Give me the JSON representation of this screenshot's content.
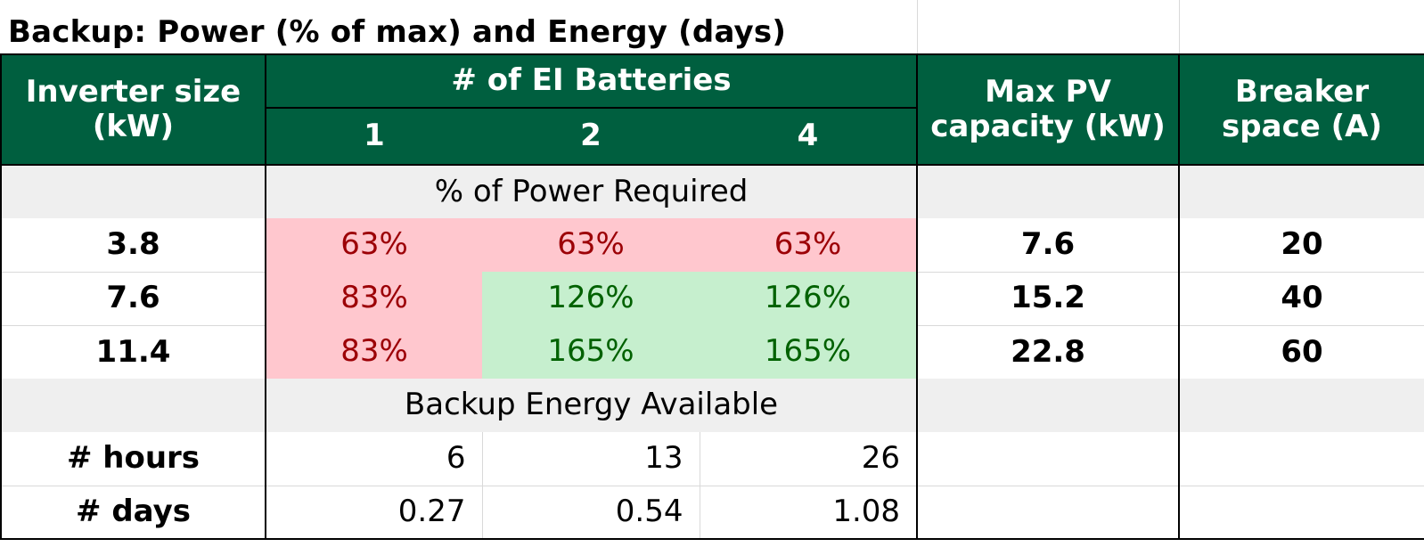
{
  "title": "Backup: Power (% of max) and Energy (days)",
  "header": {
    "inverter_size": "Inverter size (kW)",
    "batteries_group": "# of EI Batteries",
    "battery_counts": [
      "1",
      "2",
      "4"
    ],
    "max_pv": "Max PV capacity (kW)",
    "breaker_space": "Breaker space (A)"
  },
  "power_section": {
    "label": "% of Power Required",
    "rows": [
      {
        "inverter": "3.8",
        "values": [
          "63%",
          "63%",
          "63%"
        ],
        "status": [
          "bad",
          "bad",
          "bad"
        ],
        "max_pv": "7.6",
        "breaker": "20"
      },
      {
        "inverter": "7.6",
        "values": [
          "83%",
          "126%",
          "126%"
        ],
        "status": [
          "bad",
          "good",
          "good"
        ],
        "max_pv": "15.2",
        "breaker": "40"
      },
      {
        "inverter": "11.4",
        "values": [
          "83%",
          "165%",
          "165%"
        ],
        "status": [
          "bad",
          "good",
          "good"
        ],
        "max_pv": "22.8",
        "breaker": "60"
      }
    ]
  },
  "energy_section": {
    "label": "Backup Energy Available",
    "rows": [
      {
        "label": "# hours",
        "values": [
          "6",
          "13",
          "26"
        ]
      },
      {
        "label": "# days",
        "values": [
          "0.27",
          "0.54",
          "1.08"
        ]
      }
    ]
  },
  "colors": {
    "header_bg": "#005f3f",
    "bad_bg": "#ffc7ce",
    "bad_text": "#9c0006",
    "good_bg": "#c6efce",
    "good_text": "#006100",
    "section_bg": "#efefef"
  }
}
